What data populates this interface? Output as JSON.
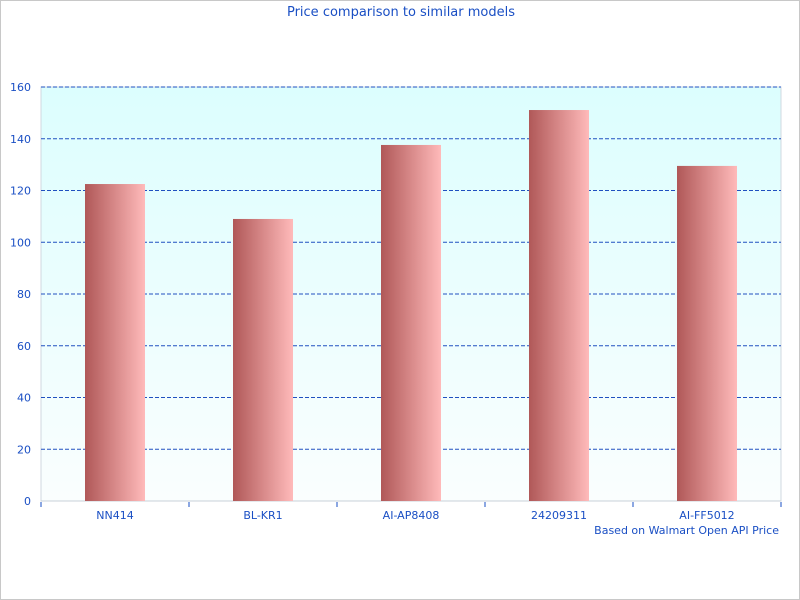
{
  "chart_data": {
    "type": "bar",
    "title": "Price comparison to similar models",
    "categories": [
      "NN414",
      "BL-KR1",
      "AI-AP8408",
      "24209311",
      "AI-FF5012"
    ],
    "values": [
      122.5,
      109,
      137.6,
      151.1,
      129.5
    ],
    "ylim": [
      0,
      160
    ],
    "yticks": [
      0,
      20,
      40,
      60,
      80,
      100,
      120,
      140,
      160
    ],
    "grid": true,
    "annotation": "Based on Walmart Open API Price",
    "colors": {
      "bar_dark": "#b05858",
      "bar_light": "#ffbaba",
      "plot_bg_top": "#dcfefe",
      "plot_bg_bottom": "#fafefe",
      "text": "#1a4fc4",
      "grid": "#2050c0"
    }
  }
}
